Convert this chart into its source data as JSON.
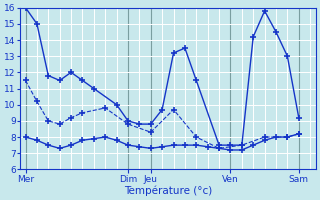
{
  "background_color": "#c8e8ec",
  "grid_color": "#b0d8dc",
  "line_color": "#1535c8",
  "xlabel": "Température (°c)",
  "ylim": [
    6,
    16
  ],
  "yticks": [
    6,
    7,
    8,
    9,
    10,
    11,
    12,
    13,
    14,
    15,
    16
  ],
  "day_labels": [
    "Mer",
    "Dim",
    "Jeu",
    "Ven",
    "Sam"
  ],
  "day_x": [
    0,
    9,
    11,
    18,
    24
  ],
  "xlim": [
    -0.5,
    25.5
  ],
  "n_grid_x": 26,
  "s1_x": [
    0,
    1,
    2,
    3,
    4,
    5,
    6,
    8,
    9,
    10,
    11,
    12,
    13,
    14,
    15,
    17,
    18,
    19,
    20,
    21,
    22,
    23,
    24
  ],
  "s1_y": [
    16.0,
    15.0,
    11.8,
    11.5,
    12.0,
    11.5,
    11.0,
    10.0,
    9.0,
    8.8,
    8.8,
    9.7,
    13.2,
    13.5,
    11.5,
    7.5,
    7.5,
    7.5,
    14.2,
    15.8,
    14.5,
    13.0,
    9.2
  ],
  "s2_x": [
    0,
    1,
    2,
    3,
    4,
    5,
    6,
    7,
    8,
    9,
    10,
    11,
    12,
    13,
    14,
    15,
    16,
    17,
    18,
    19,
    20,
    21,
    22,
    23,
    24
  ],
  "s2_y": [
    8.0,
    7.8,
    7.5,
    7.3,
    7.5,
    7.8,
    7.9,
    8.0,
    7.8,
    7.5,
    7.4,
    7.3,
    7.4,
    7.5,
    7.5,
    7.5,
    7.4,
    7.3,
    7.2,
    7.2,
    7.5,
    7.8,
    8.0,
    8.0,
    8.2
  ],
  "s3_x": [
    0,
    1,
    2,
    3,
    4,
    5,
    7,
    9,
    11,
    13,
    15,
    17,
    19,
    21,
    23,
    24
  ],
  "s3_y": [
    11.5,
    10.2,
    9.0,
    8.8,
    9.2,
    9.5,
    9.8,
    8.8,
    8.3,
    9.7,
    8.0,
    7.3,
    7.5,
    8.0,
    8.0,
    8.2
  ]
}
